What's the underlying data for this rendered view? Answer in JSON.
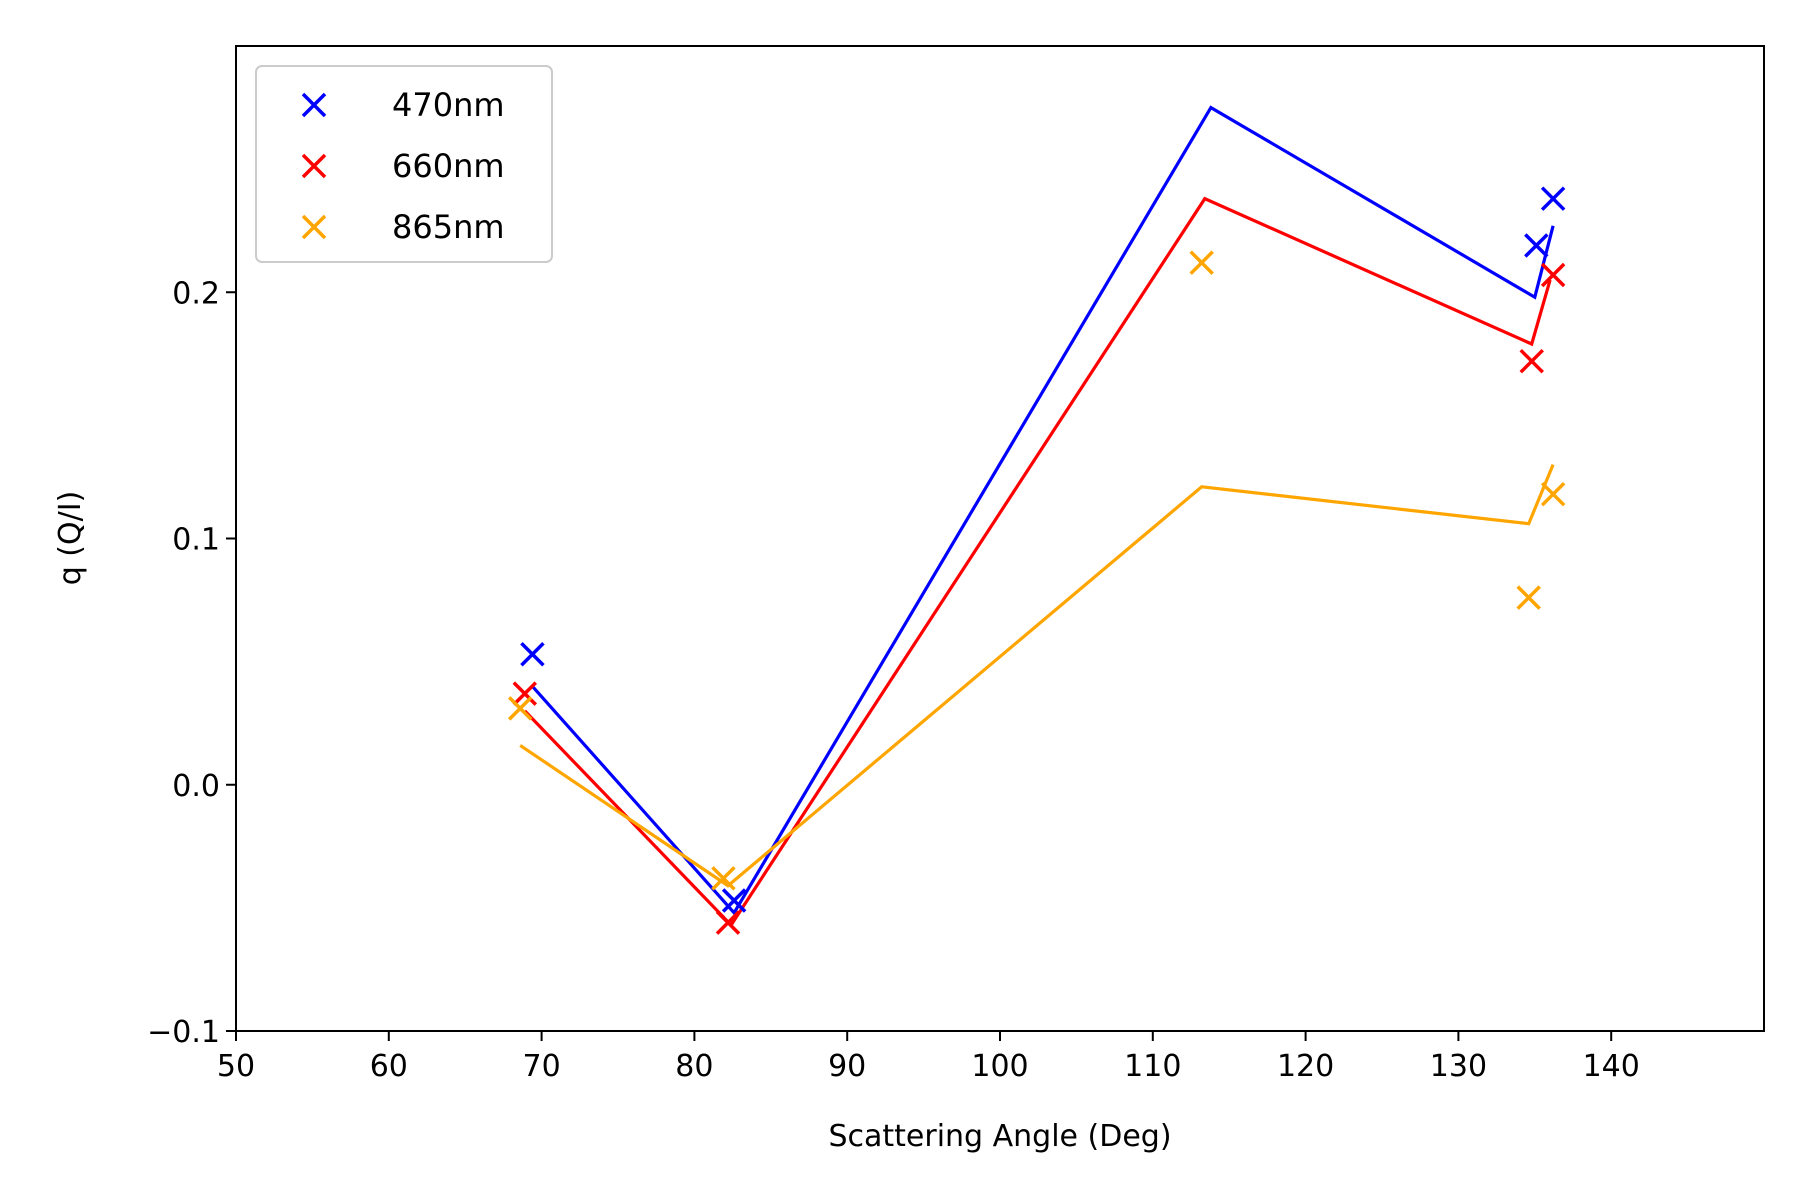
{
  "chart_data": {
    "type": "scatter",
    "title": "",
    "xlabel": "Scattering Angle (Deg)",
    "ylabel": "q (Q/I)",
    "xlim": [
      50,
      150
    ],
    "ylim": [
      -0.1,
      0.3
    ],
    "xticks": [
      50,
      60,
      70,
      80,
      90,
      100,
      110,
      120,
      130,
      140
    ],
    "xtick_labels": [
      "50",
      "60",
      "70",
      "80",
      "90",
      "100",
      "110",
      "120",
      "130",
      "140"
    ],
    "yticks": [
      -0.1,
      0.0,
      0.1,
      0.2
    ],
    "ytick_labels": [
      "−0.1",
      "0.0",
      "0.1",
      "0.2"
    ],
    "grid": false,
    "legend_position": "top-left",
    "series": [
      {
        "name": "470nm",
        "color": "#0000ff",
        "points": [
          [
            69.4,
            0.053
          ],
          [
            82.6,
            -0.047
          ],
          [
            135.1,
            0.219
          ],
          [
            136.2,
            0.238
          ]
        ],
        "line": [
          [
            69.4,
            0.04
          ],
          [
            82.6,
            -0.052
          ],
          [
            113.8,
            0.275
          ],
          [
            135.0,
            0.198
          ],
          [
            136.2,
            0.227
          ]
        ]
      },
      {
        "name": "660nm",
        "color": "#ff0000",
        "points": [
          [
            68.9,
            0.037
          ],
          [
            82.2,
            -0.056
          ],
          [
            134.8,
            0.172
          ],
          [
            136.2,
            0.207
          ]
        ],
        "line": [
          [
            68.9,
            0.03
          ],
          [
            82.4,
            -0.057
          ],
          [
            113.4,
            0.238
          ],
          [
            134.8,
            0.179
          ],
          [
            136.0,
            0.205
          ]
        ]
      },
      {
        "name": "865nm",
        "color": "#ffa500",
        "points": [
          [
            68.6,
            0.031
          ],
          [
            81.9,
            -0.038
          ],
          [
            113.2,
            0.212
          ],
          [
            134.6,
            0.076
          ],
          [
            136.2,
            0.118
          ]
        ],
        "line": [
          [
            68.6,
            0.016
          ],
          [
            82.2,
            -0.041
          ],
          [
            113.2,
            0.121
          ],
          [
            134.6,
            0.106
          ],
          [
            136.2,
            0.13
          ]
        ]
      }
    ]
  }
}
